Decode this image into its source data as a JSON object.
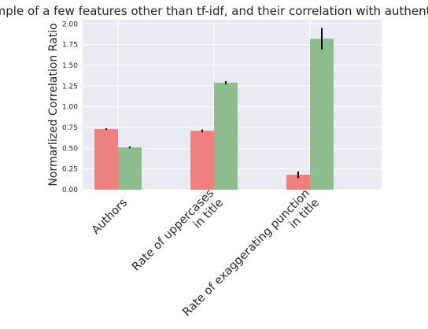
{
  "chart_data": {
    "type": "bar",
    "title": "Example of a few features other than tf-idf, and their correlation with authenticity",
    "xlabel": "",
    "ylabel": "Normarlized Correlation Ratio",
    "categories": [
      [
        "Authors"
      ],
      [
        "Rate of uppercases",
        "in title"
      ],
      [
        "Rate of exaggerating punction",
        "in title"
      ]
    ],
    "ylim": [
      0,
      2.05
    ],
    "yticks": [
      "0.00",
      "0.25",
      "0.50",
      "0.75",
      "1.00",
      "1.25",
      "1.50",
      "1.75",
      "2.00"
    ],
    "grid": true,
    "series": [
      {
        "color": "#f08080",
        "values": [
          0.73,
          0.71,
          0.18
        ],
        "errors": [
          0.01,
          0.015,
          0.04
        ]
      },
      {
        "color": "#8fbc8f",
        "values": [
          0.51,
          1.29,
          1.82
        ],
        "errors": [
          0.01,
          0.02,
          0.13
        ]
      }
    ]
  }
}
